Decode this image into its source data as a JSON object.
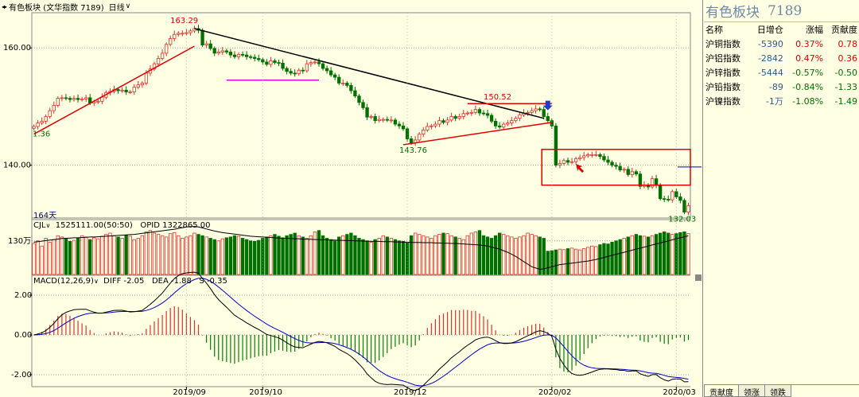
{
  "window": {
    "title": "有色板块 (文华指数 7189)",
    "timeframe": "日线",
    "nav_arrows": "◂▸"
  },
  "chart_data": [
    {
      "type": "candlestick",
      "title": "有色板块 (文华指数 7189)",
      "x_ticks": [
        "2019/09",
        "2019/10",
        "2019/12",
        "2020/02",
        "2020/03"
      ],
      "y_ticks": [
        "160.00",
        "140.00"
      ],
      "ylim": [
        131,
        166
      ],
      "bars_label": "164天",
      "annotations": [
        "163.29",
        "150.52",
        "143.76",
        "132.03",
        "1.36"
      ],
      "closes": [
        146.6,
        147.2,
        147.5,
        148.3,
        149.3,
        150.2,
        151.4,
        151.5,
        151.4,
        151.2,
        151.4,
        151.2,
        151.3,
        151.5,
        150.6,
        150.8,
        150.9,
        151.6,
        152.4,
        152.6,
        152.9,
        152.7,
        152.8,
        152.5,
        152.5,
        153.3,
        153.7,
        154.0,
        155.7,
        156.4,
        157.3,
        158.2,
        159.1,
        160.6,
        161.6,
        162.3,
        162.5,
        162.5,
        162.6,
        162.9,
        163.3,
        163.0,
        160.5,
        160.7,
        159.9,
        159.1,
        159.3,
        159.5,
        159.3,
        158.8,
        158.5,
        158.9,
        158.8,
        158.5,
        158.4,
        158.2,
        158.0,
        157.6,
        157.2,
        157.8,
        157.5,
        157.4,
        156.5,
        156.0,
        155.7,
        155.6,
        156.2,
        156.1,
        157.3,
        157.5,
        157.6,
        157.3,
        156.5,
        156.1,
        155.4,
        155.0,
        154.0,
        154.0,
        153.6,
        152.7,
        151.8,
        150.7,
        149.8,
        148.2,
        148.3,
        147.6,
        147.8,
        147.8,
        147.7,
        147.7,
        147.0,
        146.7,
        146.2,
        144.5,
        143.8,
        144.3,
        145.3,
        146.0,
        146.6,
        146.7,
        147.0,
        147.6,
        147.3,
        147.7,
        148.3,
        148.0,
        148.3,
        148.8,
        148.9,
        149.0,
        149.5,
        148.9,
        148.8,
        148.5,
        147.5,
        146.7,
        146.5,
        147.0,
        147.2,
        147.6,
        148.0,
        148.6,
        148.9,
        149.0,
        149.3,
        149.6,
        149.5,
        148.3,
        147.6,
        146.7,
        140.0,
        140.3,
        140.8,
        140.5,
        140.6,
        141.1,
        141.3,
        141.6,
        141.8,
        141.8,
        141.8,
        141.5,
        140.9,
        140.5,
        140.0,
        139.8,
        139.2,
        139.3,
        138.4,
        138.9,
        138.5,
        136.4,
        136.6,
        136.3,
        137.7,
        136.6,
        134.3,
        134.2,
        134.1,
        135.5,
        134.6,
        134.0,
        132.0,
        133.1
      ],
      "trendlines": [
        {
          "color": "#E00000",
          "from": [
            0,
            145.3
          ],
          "to": [
            40,
            160.3
          ]
        },
        {
          "color": "#000000",
          "from": [
            40,
            163.3
          ],
          "to": [
            127,
            148.0
          ]
        },
        {
          "color": "#E000E0",
          "from": [
            48,
            154.5
          ],
          "to": [
            71,
            154.5
          ]
        },
        {
          "color": "#E00000",
          "from": [
            92,
            143.5
          ],
          "to": [
            129,
            147.3
          ]
        },
        {
          "color": "#E00000",
          "from": [
            108,
            150.5
          ],
          "to": [
            129,
            150.5
          ]
        }
      ],
      "box": {
        "color": "#E00000",
        "x": [
          127,
          164
        ],
        "y": [
          136.6,
          142.7
        ]
      }
    },
    {
      "type": "bar",
      "title": "CJL",
      "header_value": "1525111.00(50:50)",
      "opid_label": "OPID",
      "opid_value": "1322865.00",
      "y_ticks": [
        "130万"
      ],
      "ylim": [
        0,
        200
      ],
      "volume": [
        120,
        130,
        110,
        140,
        125,
        135,
        150,
        145,
        138,
        128,
        132,
        140,
        150,
        145,
        135,
        142,
        138,
        148,
        155,
        160,
        150,
        145,
        140,
        152,
        148,
        135,
        140,
        150,
        165,
        170,
        160,
        155,
        150,
        145,
        158,
        162,
        150,
        140,
        145,
        150,
        160,
        155,
        150,
        145,
        140,
        135,
        130,
        138,
        142,
        145,
        150,
        148,
        140,
        135,
        130,
        128,
        132,
        140,
        145,
        150,
        155,
        148,
        142,
        150,
        155,
        160,
        150,
        145,
        140,
        150,
        165,
        170,
        150,
        140,
        135,
        130,
        145,
        150,
        155,
        160,
        150,
        140,
        135,
        130,
        125,
        135,
        140,
        150,
        145,
        140,
        135,
        130,
        128,
        125,
        150,
        160,
        155,
        150,
        145,
        140,
        150,
        155,
        160,
        158,
        150,
        145,
        140,
        135,
        150,
        160,
        165,
        170,
        150,
        145,
        140,
        150,
        160,
        155,
        150,
        145,
        140,
        145,
        150,
        160,
        155,
        150,
        145,
        140,
        90,
        92,
        95,
        98,
        96,
        100,
        102,
        98,
        95,
        100,
        105,
        110,
        108,
        115,
        120,
        118,
        125,
        130,
        135,
        140,
        145,
        150,
        155,
        150,
        148,
        145,
        150,
        155,
        160,
        165,
        160,
        155,
        158,
        162,
        165,
        158
      ],
      "opid": [
        125,
        127,
        129,
        131,
        133,
        135,
        137,
        139,
        140,
        141,
        142,
        142,
        143,
        144,
        145,
        145,
        146,
        147,
        148,
        149,
        150,
        151,
        152,
        153,
        154,
        155,
        157,
        159,
        161,
        163,
        165,
        167,
        169,
        171,
        173,
        175,
        178,
        181,
        184,
        185,
        186,
        184,
        180,
        176,
        172,
        168,
        165,
        162,
        160,
        158,
        156,
        154,
        152,
        150,
        148,
        147,
        146,
        145,
        144,
        143,
        142,
        141,
        140,
        140,
        139,
        138,
        138,
        137,
        136,
        136,
        135,
        135,
        134,
        134,
        133,
        133,
        132,
        132,
        131,
        131,
        130,
        130,
        129,
        129,
        128,
        128,
        128,
        127,
        127,
        127,
        126,
        126,
        125,
        125,
        124,
        124,
        124,
        123,
        123,
        123,
        122,
        122,
        121,
        121,
        120,
        120,
        119,
        118,
        117,
        116,
        115,
        114,
        112,
        110,
        106,
        102,
        98,
        92,
        86,
        78,
        70,
        60,
        50,
        40,
        30,
        25,
        20,
        22,
        26,
        30,
        34,
        38,
        40,
        42,
        44,
        46,
        48,
        50,
        52,
        55,
        58,
        62,
        66,
        70,
        74,
        78,
        82,
        86,
        90,
        94,
        98,
        102,
        106,
        110,
        114,
        118,
        122,
        126,
        130,
        134,
        138,
        142,
        146,
        150
      ]
    },
    {
      "type": "line",
      "title": "MACD(12,26,9)",
      "diff_label": "DIFF",
      "diff_value": "-2.05",
      "dea_label": "DEA",
      "dea_value": "-1.88",
      "s_label": "S",
      "s_value": "-0.35",
      "y_ticks": [
        "2.00",
        "0.00",
        "-2.00"
      ],
      "ylim": [
        -2.6,
        3.0
      ],
      "colors": {
        "diff": "#000000",
        "dea": "#0000C8",
        "pos_bar": "#E03030",
        "neg_bar": "#008000"
      }
    }
  ],
  "sidebar": {
    "header_name": "有色板块",
    "header_code": "7189",
    "columns": [
      "名称",
      "日增仓",
      "涨幅",
      "贡献度"
    ],
    "rows": [
      {
        "name": "沪铜指数",
        "vol": "-5390",
        "chg": "0.37%",
        "contrib": "0.78",
        "dir": "pos"
      },
      {
        "name": "沪铝指数",
        "vol": "-2842",
        "chg": "0.47%",
        "contrib": "0.36",
        "dir": "pos"
      },
      {
        "name": "沪锌指数",
        "vol": "-5444",
        "chg": "-0.57%",
        "contrib": "-0.50",
        "dir": "neg"
      },
      {
        "name": "沪铅指数",
        "vol": "-89",
        "chg": "-0.84%",
        "contrib": "-1.33",
        "dir": "neg"
      },
      {
        "name": "沪镍指数",
        "vol": "-1万",
        "chg": "-1.08%",
        "contrib": "-1.49",
        "dir": "neg"
      }
    ],
    "tabs": [
      "贡献度",
      "领涨",
      "领跌"
    ]
  },
  "colors": {
    "background": "#FFFFE4",
    "up": "#E03030",
    "down": "#007000",
    "grid": "#A0A0A0",
    "axis_text": "#000000"
  }
}
